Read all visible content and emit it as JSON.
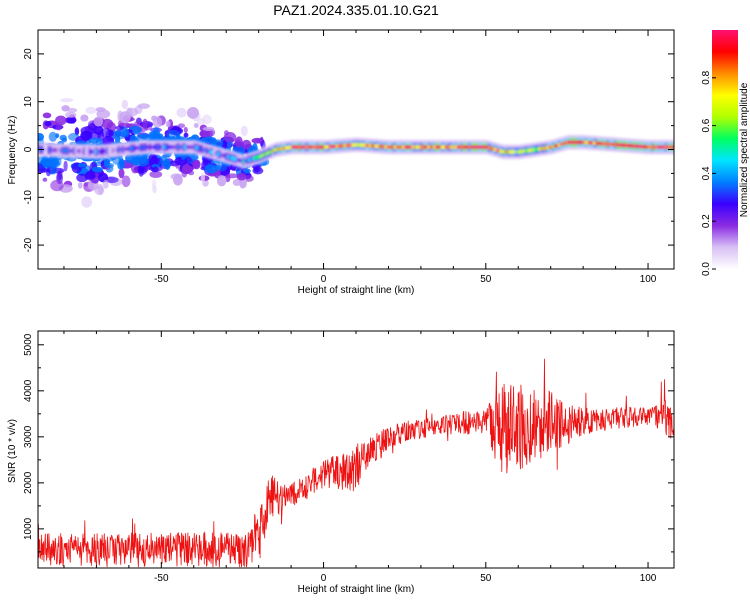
{
  "title": "PAZ1.2024.335.01.10.G21",
  "colors": {
    "snr_line": "#ee1111",
    "frame": "#000000"
  },
  "colorscale": [
    "#ffffff",
    "#d8c0f5",
    "#8a2be2",
    "#3a00ff",
    "#0080ff",
    "#00e5ff",
    "#00ff60",
    "#b0ff00",
    "#ffff00",
    "#ff8c00",
    "#ff0000",
    "#ff1070"
  ],
  "chart_data": [
    {
      "type": "heatmap",
      "xlabel": "Height of straight line (km)",
      "ylabel": "Frequency (Hz)",
      "xlim": [
        -88,
        108
      ],
      "ylim": [
        -25,
        25
      ],
      "xticks": [
        -50,
        0,
        50,
        100
      ],
      "yticks": [
        -20,
        -10,
        0,
        10,
        20
      ],
      "colorbar": {
        "label": "Normalized spectral amplitude",
        "range": [
          0,
          1
        ],
        "ticks": [
          "0.0",
          "0.2",
          "0.4",
          "0.6",
          "0.8"
        ]
      },
      "ridge": [
        {
          "x": -88,
          "f": 0.0
        },
        {
          "x": -70,
          "f": -0.5
        },
        {
          "x": -55,
          "f": 0.5
        },
        {
          "x": -40,
          "f": 0.5
        },
        {
          "x": -30,
          "f": -1.5
        },
        {
          "x": -25,
          "f": -2.5
        },
        {
          "x": -20,
          "f": -1.5
        },
        {
          "x": -15,
          "f": 0.0
        },
        {
          "x": -10,
          "f": 0.5
        },
        {
          "x": 0,
          "f": 0.5
        },
        {
          "x": 10,
          "f": 1.0
        },
        {
          "x": 20,
          "f": 0.5
        },
        {
          "x": 30,
          "f": 0.5
        },
        {
          "x": 40,
          "f": 0.5
        },
        {
          "x": 50,
          "f": 0.5
        },
        {
          "x": 55,
          "f": -0.5
        },
        {
          "x": 60,
          "f": -0.5
        },
        {
          "x": 65,
          "f": 0.0
        },
        {
          "x": 70,
          "f": 0.5
        },
        {
          "x": 75,
          "f": 1.5
        },
        {
          "x": 80,
          "f": 1.5
        },
        {
          "x": 90,
          "f": 1.0
        },
        {
          "x": 100,
          "f": 0.5
        },
        {
          "x": 108,
          "f": 0.5
        }
      ],
      "ridge_amplitude": [
        {
          "x": -88,
          "a": 0.25
        },
        {
          "x": -30,
          "a": 0.3
        },
        {
          "x": -20,
          "a": 0.45
        },
        {
          "x": -10,
          "a": 0.95
        },
        {
          "x": 10,
          "a": 0.8
        },
        {
          "x": 30,
          "a": 0.85
        },
        {
          "x": 50,
          "a": 0.95
        },
        {
          "x": 60,
          "a": 0.6
        },
        {
          "x": 75,
          "a": 0.9
        },
        {
          "x": 108,
          "a": 0.95
        }
      ],
      "scatter_extent": {
        "x": [
          -88,
          -18
        ],
        "f_spread": 10
      }
    },
    {
      "type": "line",
      "xlabel": "Height of straight line (km)",
      "ylabel": "SNR (10 * v/v)",
      "xlim": [
        -88,
        108
      ],
      "ylim": [
        150,
        5300
      ],
      "xticks": [
        -50,
        0,
        50,
        100
      ],
      "yticks": [
        1000,
        2000,
        3000,
        4000,
        5000
      ],
      "series_envelope": [
        {
          "x": -88,
          "base": 550,
          "noise": 350
        },
        {
          "x": -25,
          "base": 550,
          "noise": 400
        },
        {
          "x": -18,
          "base": 1000,
          "noise": 700
        },
        {
          "x": -17,
          "base": 1700,
          "noise": 500
        },
        {
          "x": -10,
          "base": 1700,
          "noise": 300
        },
        {
          "x": 0,
          "base": 2200,
          "noise": 300
        },
        {
          "x": 10,
          "base": 2300,
          "noise": 500
        },
        {
          "x": 20,
          "base": 3000,
          "noise": 250
        },
        {
          "x": 35,
          "base": 3250,
          "noise": 200
        },
        {
          "x": 50,
          "base": 3350,
          "noise": 300
        },
        {
          "x": 55,
          "base": 3200,
          "noise": 1100
        },
        {
          "x": 70,
          "base": 3300,
          "noise": 700
        },
        {
          "x": 80,
          "base": 3350,
          "noise": 300
        },
        {
          "x": 100,
          "base": 3450,
          "noise": 200
        },
        {
          "x": 108,
          "base": 3400,
          "noise": 500
        }
      ]
    }
  ]
}
